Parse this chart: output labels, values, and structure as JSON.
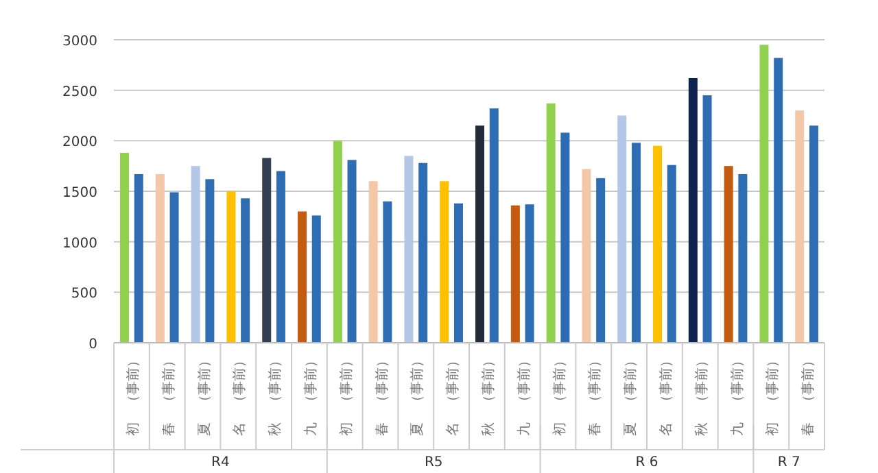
{
  "chart_data": {
    "type": "bar",
    "categories": [
      "初　（事前）",
      "春　（事前）",
      "夏　（事前）",
      "名　（事前）",
      "秋　（事前）",
      "九　（事前）",
      "初　（事前）",
      "春　（事前）",
      "夏　（事前）",
      "名　（事前）",
      "秋　（事前）",
      "九　（事前）",
      "初　（事前）",
      "春　（事前）",
      "夏　（事前）",
      "名　（事前）",
      "秋　（事前）",
      "九　（事前）",
      "初　（事前）",
      "春　（事前）"
    ],
    "series": [
      {
        "colors": [
          "#92d050",
          "#f4c7a8",
          "#b4c7e7",
          "#ffc000",
          "#333f50",
          "#c55a11",
          "#92d050",
          "#f4c7a8",
          "#b4c7e7",
          "#ffc000",
          "#222b3a",
          "#c55a11",
          "#92d050",
          "#f4c7a8",
          "#b4c7e7",
          "#ffc000",
          "#0e2250",
          "#c55a11",
          "#92d050",
          "#f4c7a8"
        ],
        "values": [
          1880,
          1670,
          1750,
          1500,
          1830,
          1300,
          2000,
          1600,
          1850,
          1600,
          2150,
          1360,
          2370,
          1720,
          2250,
          1950,
          2620,
          1750,
          2950,
          2300
        ]
      },
      {
        "color": "#2e6db4",
        "values": [
          1670,
          1490,
          1620,
          1430,
          1700,
          1260,
          1810,
          1400,
          1780,
          1380,
          2320,
          1370,
          2080,
          1630,
          1980,
          1760,
          2450,
          1670,
          2820,
          2150
        ]
      }
    ],
    "ylim": [
      0,
      3000
    ],
    "yticks": [
      0,
      500,
      1000,
      1500,
      2000,
      2500,
      3000
    ],
    "grid": "y",
    "annotations": [
      "R4",
      "R5",
      "R 6",
      "R 7"
    ]
  }
}
